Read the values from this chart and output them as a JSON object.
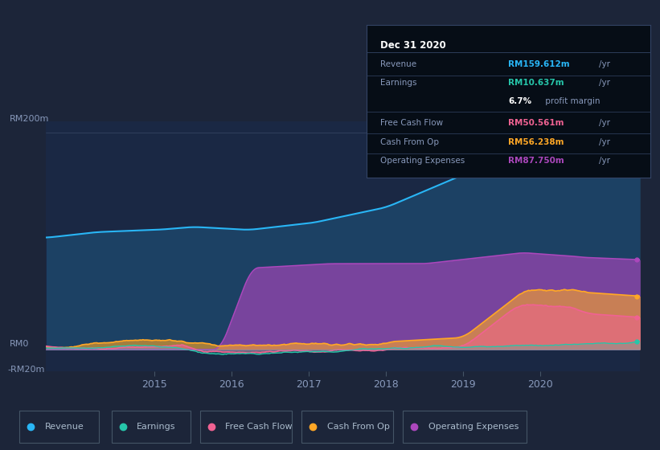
{
  "background_color": "#1c2539",
  "plot_bg_color": "#1a2844",
  "ylabel_200": "RM200m",
  "ylabel_0": "RM0",
  "ylabel_neg20": "-RM20m",
  "ylim": [
    -20,
    210
  ],
  "xlim": [
    2013.6,
    2021.3
  ],
  "xticks": [
    2015,
    2016,
    2017,
    2018,
    2019,
    2020
  ],
  "grid_color": "#2a3f60",
  "series_colors": {
    "revenue": "#29b6f6",
    "earnings": "#26c6aa",
    "free_cash_flow": "#f06292",
    "cash_from_op": "#ffa726",
    "operating_expenses": "#ab47bc"
  },
  "legend_items": [
    {
      "label": "Revenue",
      "color": "#29b6f6"
    },
    {
      "label": "Earnings",
      "color": "#26c6aa"
    },
    {
      "label": "Free Cash Flow",
      "color": "#f06292"
    },
    {
      "label": "Cash From Op",
      "color": "#ffa726"
    },
    {
      "label": "Operating Expenses",
      "color": "#ab47bc"
    }
  ],
  "info_box": {
    "title": "Dec 31 2020",
    "rows": [
      {
        "label": "Revenue",
        "value": "RM159.612m",
        "value_color": "#29b6f6",
        "unit": "/yr"
      },
      {
        "label": "Earnings",
        "value": "RM10.637m",
        "value_color": "#26c6aa",
        "unit": "/yr"
      },
      {
        "label": "",
        "value": "6.7%",
        "value_color": "#ffffff",
        "unit": " profit margin"
      },
      {
        "label": "Free Cash Flow",
        "value": "RM50.561m",
        "value_color": "#f06292",
        "unit": "/yr"
      },
      {
        "label": "Cash From Op",
        "value": "RM56.238m",
        "value_color": "#ffa726",
        "unit": "/yr"
      },
      {
        "label": "Operating Expenses",
        "value": "RM87.750m",
        "value_color": "#ab47bc",
        "unit": "/yr"
      }
    ]
  }
}
